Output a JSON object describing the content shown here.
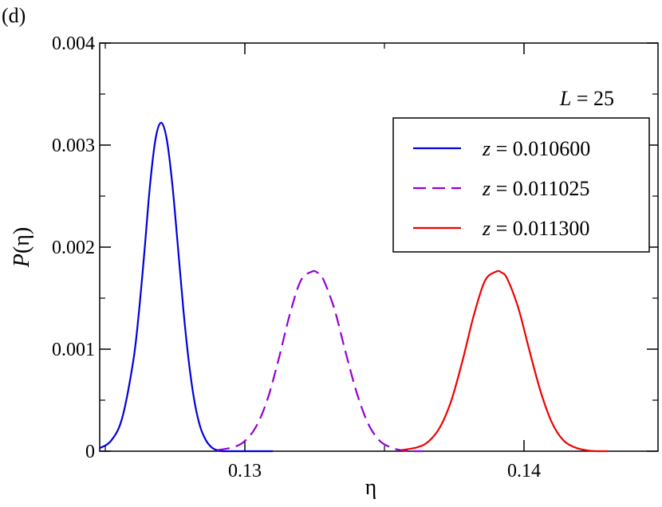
{
  "panel_label": "(d)",
  "chart_data": {
    "type": "line",
    "xlabel": "η",
    "ylabel": "P(η)",
    "xlim": [
      0.1248,
      0.1448
    ],
    "ylim": [
      0,
      0.004
    ],
    "x_ticks": [
      0.13,
      0.14
    ],
    "x_tick_labels": [
      "0.13",
      "0.14"
    ],
    "y_ticks": [
      0,
      0.001,
      0.002,
      0.003,
      0.004
    ],
    "y_tick_labels": [
      "0",
      "0.001",
      "0.002",
      "0.003",
      "0.004"
    ],
    "annotation": {
      "var": "L",
      "text": " = 25"
    },
    "legend_position": "top-right",
    "series": [
      {
        "name": "z = 0.010600",
        "var": "z",
        "value_text": " = 0.010600",
        "color": "#0000dd",
        "dash": "solid",
        "x": [
          0.1248,
          0.1252,
          0.1256,
          0.126,
          0.1262,
          0.1264,
          0.1266,
          0.1268,
          0.127,
          0.1272,
          0.1274,
          0.1276,
          0.1278,
          0.128,
          0.1282,
          0.1284,
          0.1286,
          0.1288,
          0.129,
          0.1292,
          0.1296,
          0.13,
          0.131
        ],
        "y": [
          3e-05,
          0.0001,
          0.00032,
          0.00088,
          0.00135,
          0.00195,
          0.0026,
          0.00306,
          0.00322,
          0.00306,
          0.00262,
          0.00201,
          0.00138,
          0.00086,
          0.00048,
          0.00024,
          0.00011,
          4e-05,
          1e-05,
          0,
          0,
          0,
          0
        ]
      },
      {
        "name": "z = 0.011025",
        "var": "z",
        "value_text": " = 0.011025",
        "color": "#9400d3",
        "dash": "dashed",
        "x": [
          0.129,
          0.1296,
          0.13,
          0.1304,
          0.1308,
          0.1312,
          0.1316,
          0.132,
          0.1324,
          0.1326,
          0.1328,
          0.1332,
          0.1336,
          0.134,
          0.1344,
          0.1348,
          0.1352,
          0.1356,
          0.136,
          0.1364
        ],
        "y": [
          1e-05,
          4e-05,
          0.0001,
          0.00024,
          0.0005,
          0.00089,
          0.00133,
          0.00167,
          0.00176,
          0.00175,
          0.00169,
          0.0014,
          0.00098,
          0.00058,
          0.00028,
          0.00011,
          4e-05,
          1e-05,
          0,
          0
        ]
      },
      {
        "name": "z = 0.011300",
        "var": "z",
        "value_text": " = 0.011300",
        "color": "#ee0000",
        "dash": "solid",
        "x": [
          0.1356,
          0.1362,
          0.1366,
          0.137,
          0.1374,
          0.1378,
          0.1382,
          0.1386,
          0.139,
          0.1392,
          0.1394,
          0.1398,
          0.1402,
          0.1406,
          0.141,
          0.1414,
          0.1418,
          0.1422,
          0.1426,
          0.143
        ],
        "y": [
          1e-05,
          4e-05,
          0.0001,
          0.00024,
          0.0005,
          0.00089,
          0.00133,
          0.00167,
          0.00176,
          0.00175,
          0.00169,
          0.0014,
          0.00098,
          0.00058,
          0.00028,
          0.00011,
          4e-05,
          1e-05,
          0,
          0
        ]
      }
    ]
  }
}
